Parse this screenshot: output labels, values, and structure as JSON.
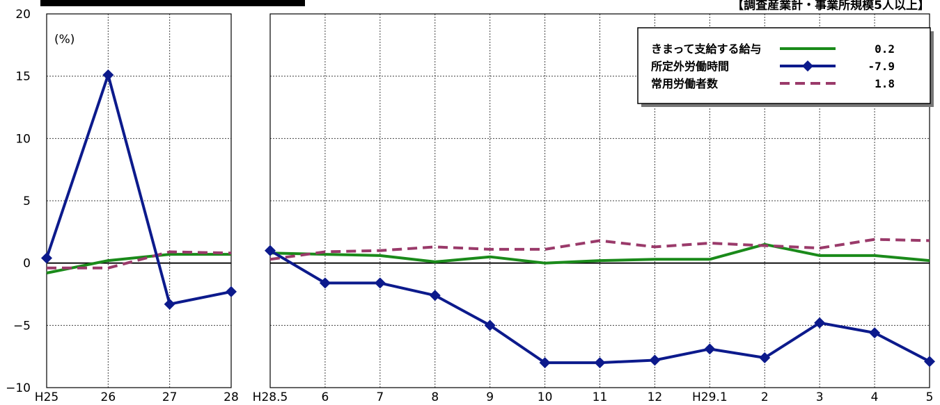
{
  "chart_data": {
    "type": "line",
    "caption": "【調査産業計・事業所規模5人以上】",
    "unit_label": "(%)",
    "ylim": [
      -10,
      20
    ],
    "yticks": [
      -10,
      -5,
      0,
      5,
      10,
      15,
      20
    ],
    "series_colors": {
      "wages": "#1a8a1a",
      "overtime": "#0c1a8c",
      "employees": "#9a3a6a"
    },
    "legend": {
      "position": "top-right",
      "entries": [
        {
          "key": "wages",
          "label": "きまって支給する給与",
          "value": "0.2"
        },
        {
          "key": "overtime",
          "label": "所定外労働時間",
          "value": "-7.9"
        },
        {
          "key": "employees",
          "label": "常用労働者数",
          "value": "1.8"
        }
      ]
    },
    "panels": [
      {
        "id": "annual",
        "x": [
          "H25",
          "26",
          "27",
          "28"
        ],
        "series": [
          {
            "key": "wages",
            "values": [
              -0.8,
              0.2,
              0.7,
              0.7
            ]
          },
          {
            "key": "overtime",
            "values": [
              0.4,
              15.1,
              -3.3,
              -2.3
            ]
          },
          {
            "key": "employees",
            "values": [
              -0.4,
              -0.4,
              0.9,
              0.8
            ]
          }
        ]
      },
      {
        "id": "monthly",
        "x": [
          "H28.5",
          "6",
          "7",
          "8",
          "9",
          "10",
          "11",
          "12",
          "H29.1",
          "2",
          "3",
          "4",
          "5"
        ],
        "series": [
          {
            "key": "wages",
            "values": [
              0.8,
              0.7,
              0.6,
              0.1,
              0.5,
              0.0,
              0.2,
              0.3,
              0.3,
              1.5,
              0.6,
              0.6,
              0.2
            ]
          },
          {
            "key": "overtime",
            "values": [
              1.0,
              -1.6,
              -1.6,
              -2.6,
              -5.0,
              -8.0,
              -8.0,
              -7.8,
              -6.9,
              -7.6,
              -4.8,
              -5.6,
              -7.9
            ]
          },
          {
            "key": "employees",
            "values": [
              0.3,
              0.9,
              1.0,
              1.3,
              1.1,
              1.1,
              1.8,
              1.3,
              1.6,
              1.4,
              1.2,
              1.9,
              1.8
            ]
          }
        ]
      }
    ]
  }
}
